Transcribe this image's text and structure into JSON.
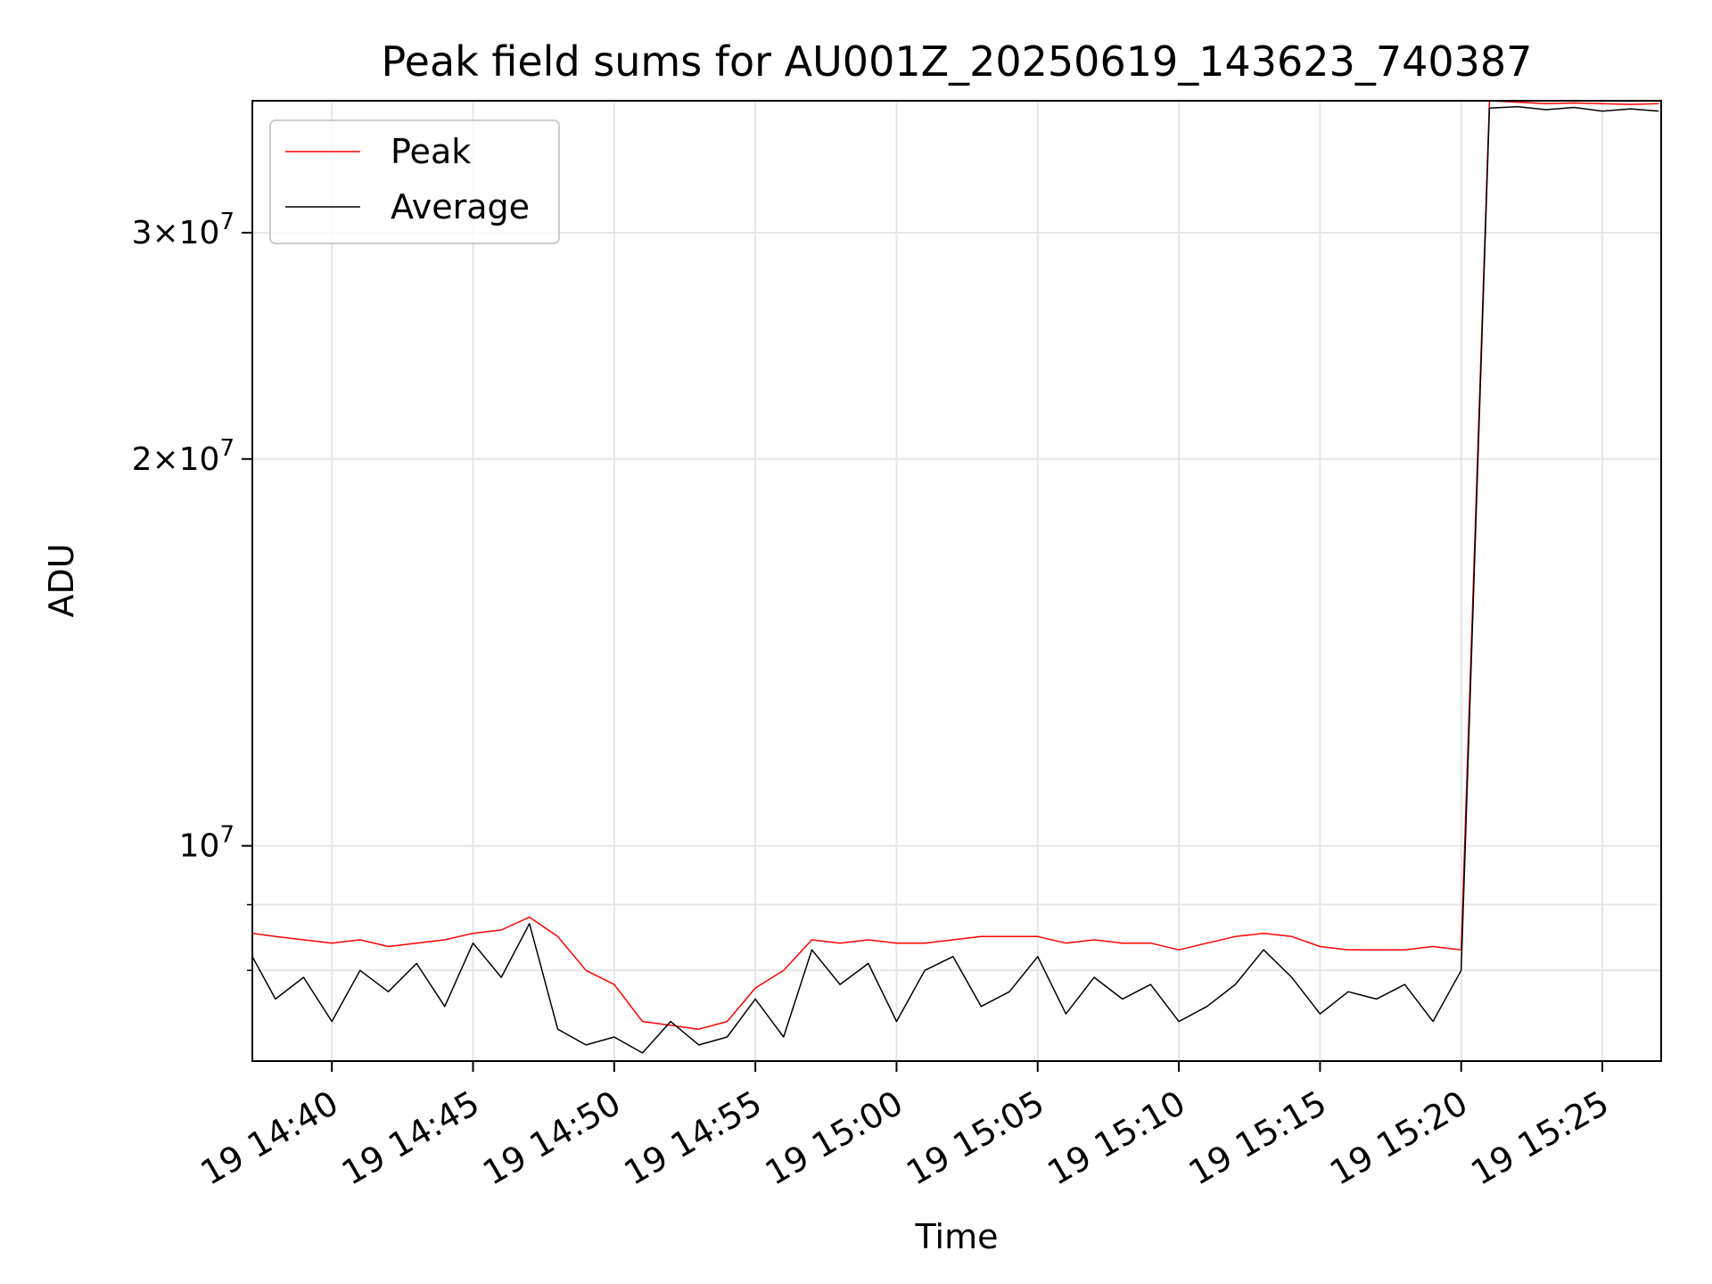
{
  "chart_data": {
    "type": "line",
    "title": "Peak field sums for AU001Z_20250619_143623_740387",
    "xlabel": "Time",
    "ylabel": "ADU",
    "yscale": "log",
    "ylim": [
      6800000,
      38000000
    ],
    "xlim": [
      "2025-06-19 14:37:11",
      "2025-06-19 15:27:05"
    ],
    "grid": true,
    "legend_position": "top-left",
    "x_ticks": [
      {
        "value": "2025-06-19 14:40",
        "label": "19 14:40"
      },
      {
        "value": "2025-06-19 14:45",
        "label": "19 14:45"
      },
      {
        "value": "2025-06-19 14:50",
        "label": "19 14:50"
      },
      {
        "value": "2025-06-19 14:55",
        "label": "19 14:55"
      },
      {
        "value": "2025-06-19 15:00",
        "label": "19 15:00"
      },
      {
        "value": "2025-06-19 15:05",
        "label": "19 15:05"
      },
      {
        "value": "2025-06-19 15:10",
        "label": "19 15:10"
      },
      {
        "value": "2025-06-19 15:15",
        "label": "19 15:15"
      },
      {
        "value": "2025-06-19 15:20",
        "label": "19 15:20"
      },
      {
        "value": "2025-06-19 15:25",
        "label": "19 15:25"
      }
    ],
    "y_ticks": [
      {
        "value": 10000000,
        "mantissa": "",
        "exponent": "7"
      },
      {
        "value": 20000000,
        "mantissa": "2",
        "exponent": "7"
      },
      {
        "value": 30000000,
        "mantissa": "3",
        "exponent": "7"
      }
    ],
    "series": [
      {
        "name": "Peak",
        "color": "#ff0000",
        "x": [
          "2025-06-19 14:37:11",
          "2025-06-19 14:38:00",
          "2025-06-19 14:39:00",
          "2025-06-19 14:40:00",
          "2025-06-19 14:41:00",
          "2025-06-19 14:42:00",
          "2025-06-19 14:43:00",
          "2025-06-19 14:44:00",
          "2025-06-19 14:45:00",
          "2025-06-19 14:46:00",
          "2025-06-19 14:47:00",
          "2025-06-19 14:48:00",
          "2025-06-19 14:49:00",
          "2025-06-19 14:50:00",
          "2025-06-19 14:51:00",
          "2025-06-19 14:52:00",
          "2025-06-19 14:53:00",
          "2025-06-19 14:54:00",
          "2025-06-19 14:55:00",
          "2025-06-19 14:56:00",
          "2025-06-19 14:57:00",
          "2025-06-19 14:58:00",
          "2025-06-19 14:59:00",
          "2025-06-19 15:00:00",
          "2025-06-19 15:01:00",
          "2025-06-19 15:02:00",
          "2025-06-19 15:03:00",
          "2025-06-19 15:04:00",
          "2025-06-19 15:05:00",
          "2025-06-19 15:06:00",
          "2025-06-19 15:07:00",
          "2025-06-19 15:08:00",
          "2025-06-19 15:09:00",
          "2025-06-19 15:10:00",
          "2025-06-19 15:11:00",
          "2025-06-19 15:12:00",
          "2025-06-19 15:13:00",
          "2025-06-19 15:14:00",
          "2025-06-19 15:15:00",
          "2025-06-19 15:16:00",
          "2025-06-19 15:17:00",
          "2025-06-19 15:18:00",
          "2025-06-19 15:19:00",
          "2025-06-19 15:20:00",
          "2025-06-19 15:21:00",
          "2025-06-19 15:22:00",
          "2025-06-19 15:23:00",
          "2025-06-19 15:24:00",
          "2025-06-19 15:25:00",
          "2025-06-19 15:26:00",
          "2025-06-19 15:27:00"
        ],
        "values": [
          8550000,
          8500000,
          8450000,
          8400000,
          8450000,
          8350000,
          8400000,
          8450000,
          8550000,
          8600000,
          8800000,
          8500000,
          8000000,
          7800000,
          7300000,
          7250000,
          7200000,
          7300000,
          7750000,
          8000000,
          8450000,
          8400000,
          8450000,
          8400000,
          8400000,
          8450000,
          8500000,
          8500000,
          8500000,
          8400000,
          8450000,
          8400000,
          8400000,
          8300000,
          8400000,
          8500000,
          8550000,
          8500000,
          8350000,
          8300000,
          8300000,
          8300000,
          8350000,
          8300000,
          38000000,
          37900000,
          37800000,
          37850000,
          37800000,
          37750000,
          37800000
        ]
      },
      {
        "name": "Average",
        "color": "#000000",
        "x": [
          "2025-06-19 14:37:11",
          "2025-06-19 14:38:00",
          "2025-06-19 14:39:00",
          "2025-06-19 14:40:00",
          "2025-06-19 14:41:00",
          "2025-06-19 14:42:00",
          "2025-06-19 14:43:00",
          "2025-06-19 14:44:00",
          "2025-06-19 14:45:00",
          "2025-06-19 14:46:00",
          "2025-06-19 14:47:00",
          "2025-06-19 14:48:00",
          "2025-06-19 14:49:00",
          "2025-06-19 14:50:00",
          "2025-06-19 14:51:00",
          "2025-06-19 14:52:00",
          "2025-06-19 14:53:00",
          "2025-06-19 14:54:00",
          "2025-06-19 14:55:00",
          "2025-06-19 14:56:00",
          "2025-06-19 14:57:00",
          "2025-06-19 14:58:00",
          "2025-06-19 14:59:00",
          "2025-06-19 15:00:00",
          "2025-06-19 15:01:00",
          "2025-06-19 15:02:00",
          "2025-06-19 15:03:00",
          "2025-06-19 15:04:00",
          "2025-06-19 15:05:00",
          "2025-06-19 15:06:00",
          "2025-06-19 15:07:00",
          "2025-06-19 15:08:00",
          "2025-06-19 15:09:00",
          "2025-06-19 15:10:00",
          "2025-06-19 15:11:00",
          "2025-06-19 15:12:00",
          "2025-06-19 15:13:00",
          "2025-06-19 15:14:00",
          "2025-06-19 15:15:00",
          "2025-06-19 15:16:00",
          "2025-06-19 15:17:00",
          "2025-06-19 15:18:00",
          "2025-06-19 15:19:00",
          "2025-06-19 15:20:00",
          "2025-06-19 15:21:00",
          "2025-06-19 15:22:00",
          "2025-06-19 15:23:00",
          "2025-06-19 15:24:00",
          "2025-06-19 15:25:00",
          "2025-06-19 15:26:00",
          "2025-06-19 15:27:00"
        ],
        "values": [
          8200000,
          7600000,
          7900000,
          7300000,
          8000000,
          7700000,
          8100000,
          7500000,
          8400000,
          7900000,
          8700000,
          7200000,
          7000000,
          7100000,
          6900000,
          7300000,
          7000000,
          7100000,
          7600000,
          7100000,
          8300000,
          7800000,
          8100000,
          7300000,
          8000000,
          8200000,
          7500000,
          7700000,
          8200000,
          7400000,
          7900000,
          7600000,
          7800000,
          7300000,
          7500000,
          7800000,
          8300000,
          7900000,
          7400000,
          7700000,
          7600000,
          7800000,
          7300000,
          8000000,
          37500000,
          37600000,
          37400000,
          37550000,
          37300000,
          37450000,
          37300000
        ]
      }
    ]
  }
}
